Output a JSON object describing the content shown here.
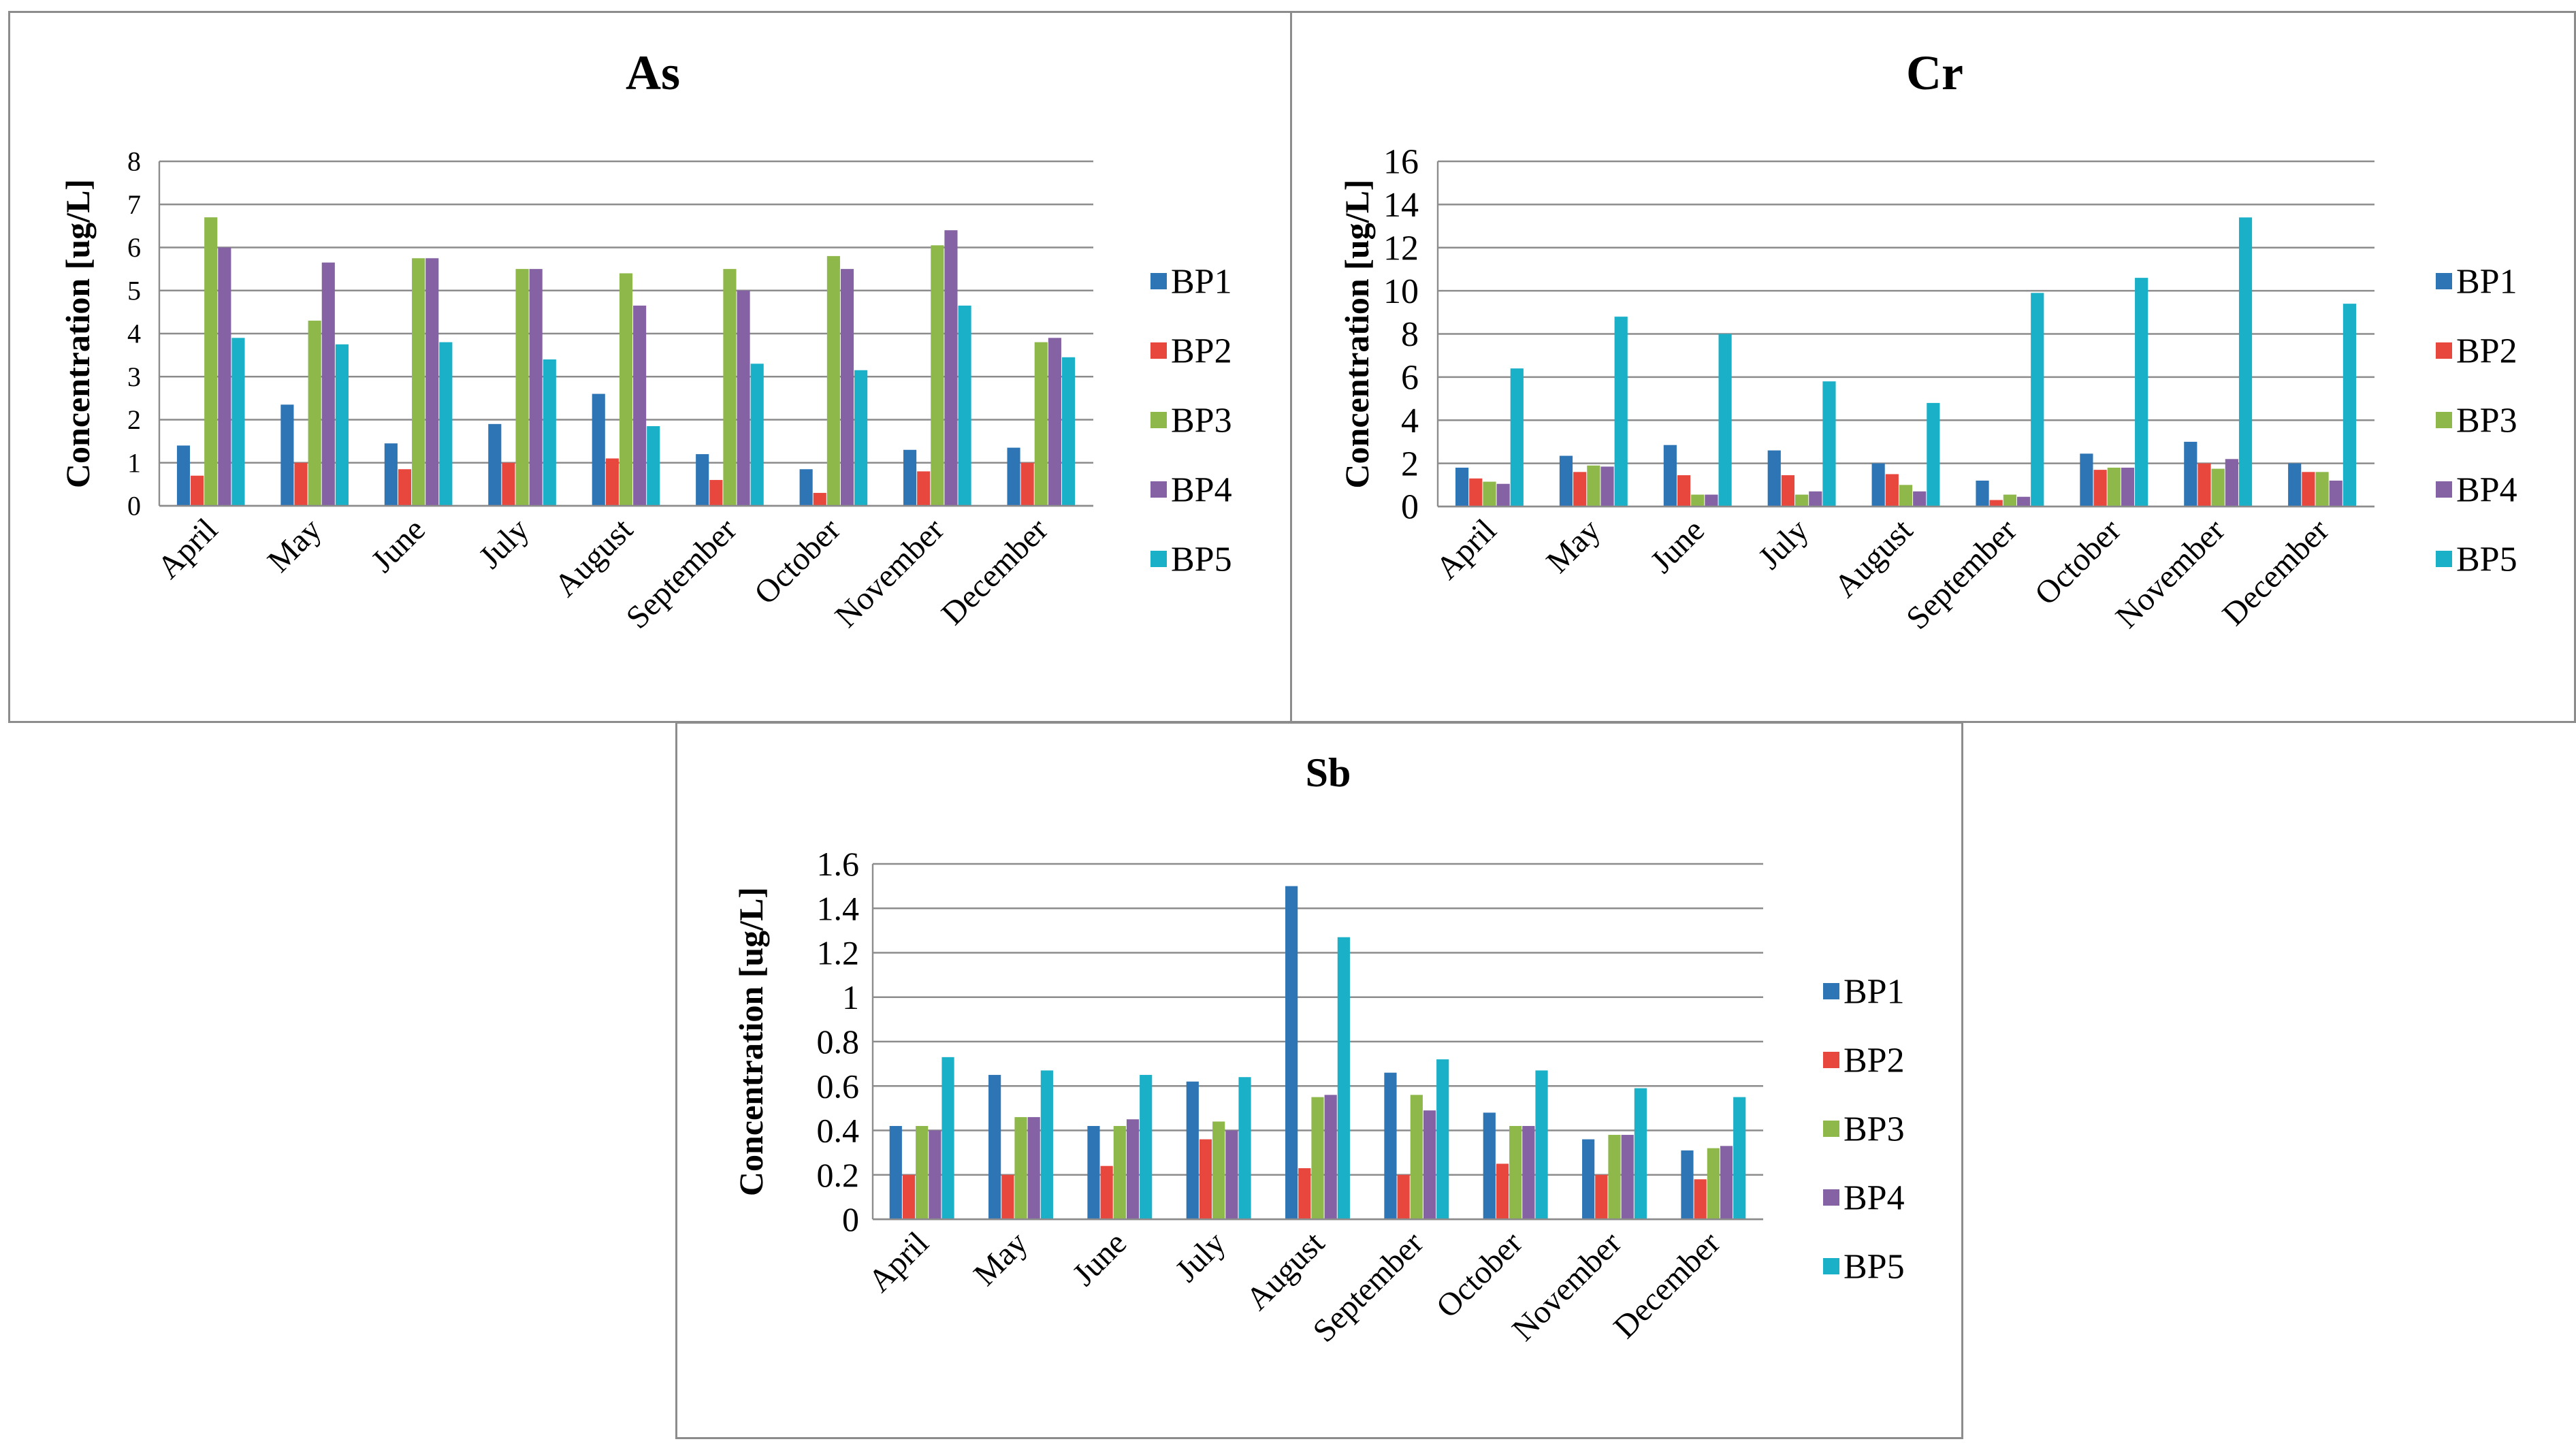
{
  "chart_data": [
    {
      "type": "bar",
      "title": "As",
      "xlabel": "",
      "ylabel": "Concentration [ug/L]",
      "ylim": [
        0,
        8
      ],
      "yticks": [
        0,
        1,
        2,
        3,
        4,
        5,
        6,
        7,
        8
      ],
      "ytick_labels": [
        "0",
        "1",
        "2",
        "3",
        "4",
        "5",
        "6",
        "7",
        "8"
      ],
      "grid": true,
      "legend": "right",
      "categories": [
        "April",
        "May",
        "June",
        "July",
        "August",
        "September",
        "October",
        "November",
        "December"
      ],
      "series": [
        {
          "name": "BP1",
          "color": "#2e75b6",
          "values": [
            1.4,
            2.35,
            1.45,
            1.9,
            2.6,
            1.2,
            0.85,
            1.3,
            1.35
          ]
        },
        {
          "name": "BP2",
          "color": "#e8473d",
          "values": [
            0.7,
            1.0,
            0.85,
            1.0,
            1.1,
            0.6,
            0.3,
            0.8,
            1.0
          ]
        },
        {
          "name": "BP3",
          "color": "#8eb84a",
          "values": [
            6.7,
            4.3,
            5.75,
            5.5,
            5.4,
            5.5,
            5.8,
            6.05,
            3.8
          ]
        },
        {
          "name": "BP4",
          "color": "#8462a4",
          "values": [
            6.0,
            5.65,
            5.75,
            5.5,
            4.65,
            5.0,
            5.5,
            6.4,
            3.9
          ]
        },
        {
          "name": "BP5",
          "color": "#1ab0c8",
          "values": [
            3.9,
            3.75,
            3.8,
            3.4,
            1.85,
            3.3,
            3.15,
            4.65,
            3.45
          ]
        }
      ]
    },
    {
      "type": "bar",
      "title": "Cr",
      "xlabel": "",
      "ylabel": "Concentration [ug/L]",
      "ylim": [
        0,
        16
      ],
      "yticks": [
        0,
        2,
        4,
        6,
        8,
        10,
        12,
        14,
        16
      ],
      "ytick_labels": [
        "0",
        "2",
        "4",
        "6",
        "8",
        "10",
        "12",
        "14",
        "16"
      ],
      "grid": true,
      "legend": "right",
      "categories": [
        "April",
        "May",
        "June",
        "July",
        "August",
        "September",
        "October",
        "November",
        "December"
      ],
      "series": [
        {
          "name": "BP1",
          "color": "#2e75b6",
          "values": [
            1.8,
            2.35,
            2.85,
            2.6,
            2.0,
            1.2,
            2.45,
            3.0,
            2.0
          ]
        },
        {
          "name": "BP2",
          "color": "#e8473d",
          "values": [
            1.3,
            1.6,
            1.45,
            1.45,
            1.5,
            0.3,
            1.7,
            2.0,
            1.6
          ]
        },
        {
          "name": "BP3",
          "color": "#8eb84a",
          "values": [
            1.15,
            1.9,
            0.55,
            0.55,
            1.0,
            0.55,
            1.8,
            1.75,
            1.6
          ]
        },
        {
          "name": "BP4",
          "color": "#8462a4",
          "values": [
            1.05,
            1.85,
            0.55,
            0.7,
            0.7,
            0.45,
            1.8,
            2.2,
            1.2
          ]
        },
        {
          "name": "BP5",
          "color": "#1ab0c8",
          "values": [
            6.4,
            8.8,
            8.0,
            5.8,
            4.8,
            9.9,
            10.6,
            13.4,
            9.4
          ]
        }
      ]
    },
    {
      "type": "bar",
      "title": "Sb",
      "xlabel": "",
      "ylabel": "Concentration [ug/L]",
      "ylim": [
        0,
        1.6
      ],
      "yticks": [
        0,
        0.2,
        0.4,
        0.6,
        0.8,
        1.0,
        1.2,
        1.4,
        1.6
      ],
      "ytick_labels": [
        "0",
        "0.2",
        "0.4",
        "0.6",
        "0.8",
        "1",
        "1.2",
        "1.4",
        "1.6"
      ],
      "grid": true,
      "legend": "right",
      "categories": [
        "April",
        "May",
        "June",
        "July",
        "August",
        "September",
        "October",
        "November",
        "December"
      ],
      "series": [
        {
          "name": "BP1",
          "color": "#2e75b6",
          "values": [
            0.42,
            0.65,
            0.42,
            0.62,
            1.5,
            0.66,
            0.48,
            0.36,
            0.31
          ]
        },
        {
          "name": "BP2",
          "color": "#e8473d",
          "values": [
            0.2,
            0.2,
            0.24,
            0.36,
            0.23,
            0.2,
            0.25,
            0.2,
            0.18
          ]
        },
        {
          "name": "BP3",
          "color": "#8eb84a",
          "values": [
            0.42,
            0.46,
            0.42,
            0.44,
            0.55,
            0.56,
            0.42,
            0.38,
            0.32
          ]
        },
        {
          "name": "BP4",
          "color": "#8462a4",
          "values": [
            0.4,
            0.46,
            0.45,
            0.4,
            0.56,
            0.49,
            0.42,
            0.38,
            0.33
          ]
        },
        {
          "name": "BP5",
          "color": "#1ab0c8",
          "values": [
            0.73,
            0.67,
            0.65,
            0.64,
            1.27,
            0.72,
            0.67,
            0.59,
            0.55
          ]
        }
      ]
    }
  ]
}
